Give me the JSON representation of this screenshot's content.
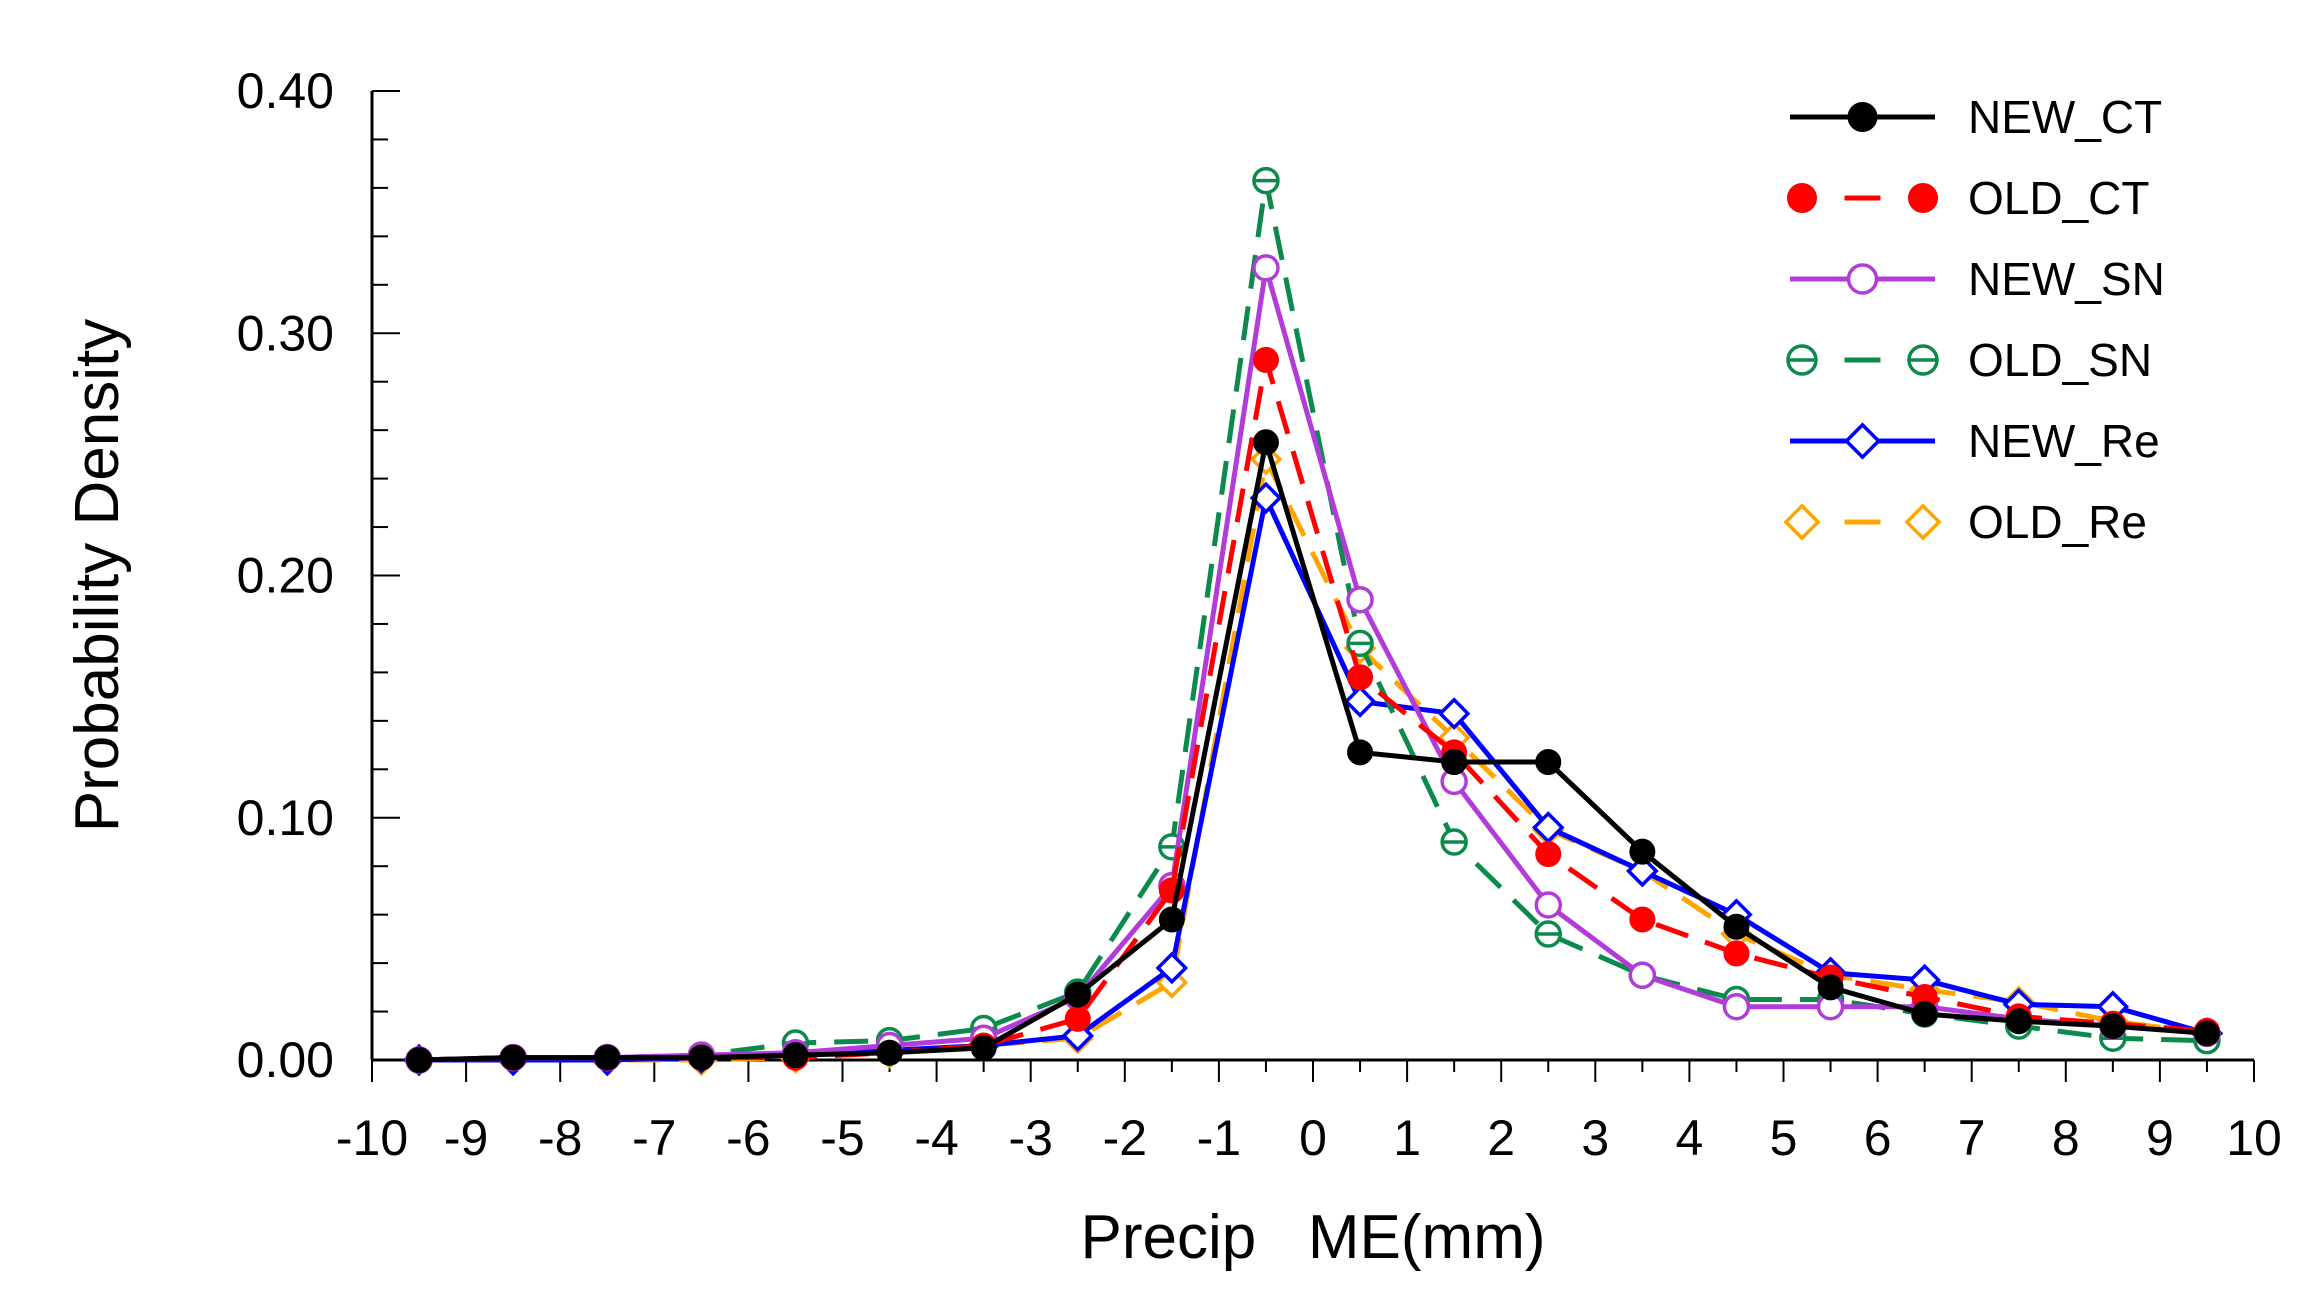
{
  "chart_data": {
    "type": "line",
    "title": "",
    "xlabel": "Precip   ME(mm)",
    "ylabel": "Probability Density",
    "xlim": [
      -10,
      10
    ],
    "ylim": [
      0,
      0.4
    ],
    "xticks": [
      -10,
      -9,
      -8,
      -7,
      -6,
      -5,
      -4,
      -3,
      -2,
      -1,
      0,
      1,
      2,
      3,
      4,
      5,
      6,
      7,
      8,
      9,
      10
    ],
    "xtick_labels": [
      "-10",
      "-9",
      "-8",
      "-7",
      "-6",
      "-5",
      "-4",
      "-3",
      "-2",
      "-1",
      "0",
      "1",
      "2",
      "3",
      "4",
      "5",
      "6",
      "7",
      "8",
      "9",
      "10"
    ],
    "yticks": [
      0,
      0.1,
      0.2,
      0.3,
      0.4
    ],
    "ytick_labels": [
      "0.00",
      "0.10",
      "0.20",
      "0.30",
      "0.40"
    ],
    "grid": false,
    "legend_position": "top-right",
    "x": [
      -9.5,
      -8.5,
      -7.5,
      -6.5,
      -5.5,
      -4.5,
      -3.5,
      -2.5,
      -1.5,
      -0.5,
      0.5,
      1.5,
      2.5,
      3.5,
      4.5,
      5.5,
      6.5,
      7.5,
      8.5,
      9.5
    ],
    "series": [
      {
        "name": "NEW_CT",
        "color": "#000000",
        "dash": "solid",
        "marker": "filled-circle",
        "values": [
          0.0,
          0.001,
          0.001,
          0.001,
          0.002,
          0.003,
          0.005,
          0.027,
          0.058,
          0.255,
          0.127,
          0.123,
          0.123,
          0.086,
          0.055,
          0.03,
          0.019,
          0.016,
          0.014,
          0.011
        ]
      },
      {
        "name": "OLD_CT",
        "color": "#ff0000",
        "dash": "dashed",
        "marker": "filled-circle",
        "values": [
          0.0,
          0.001,
          0.001,
          0.001,
          0.001,
          0.003,
          0.006,
          0.017,
          0.07,
          0.289,
          0.158,
          0.127,
          0.085,
          0.058,
          0.044,
          0.034,
          0.026,
          0.018,
          0.015,
          0.012
        ]
      },
      {
        "name": "NEW_SN",
        "color": "#b23cd9",
        "dash": "solid",
        "marker": "open-circle",
        "values": [
          0.0,
          0.001,
          0.001,
          0.002,
          0.003,
          0.006,
          0.009,
          0.026,
          0.072,
          0.327,
          0.19,
          0.115,
          0.064,
          0.035,
          0.022,
          0.022,
          0.022,
          0.017,
          0.014,
          0.011
        ]
      },
      {
        "name": "OLD_SN",
        "color": "#0b8a4c",
        "dash": "dashed",
        "marker": "circle-bar",
        "values": [
          0.0,
          0.001,
          0.001,
          0.002,
          0.007,
          0.008,
          0.013,
          0.028,
          0.088,
          0.363,
          0.172,
          0.09,
          0.052,
          0.035,
          0.025,
          0.025,
          0.019,
          0.014,
          0.009,
          0.008
        ]
      },
      {
        "name": "NEW_Re",
        "color": "#0000ff",
        "dash": "solid",
        "marker": "open-diamond",
        "values": [
          0.0,
          0.0,
          0.0,
          0.001,
          0.002,
          0.004,
          0.006,
          0.01,
          0.038,
          0.232,
          0.148,
          0.143,
          0.096,
          0.078,
          0.06,
          0.036,
          0.033,
          0.023,
          0.022,
          0.011
        ]
      },
      {
        "name": "OLD_Re",
        "color": "#ffa500",
        "dash": "dashed",
        "marker": "open-diamond",
        "values": [
          0.0,
          0.0,
          0.0,
          0.0,
          0.001,
          0.003,
          0.006,
          0.009,
          0.032,
          0.248,
          0.17,
          0.133,
          0.095,
          0.078,
          0.052,
          0.035,
          0.029,
          0.024,
          0.016,
          0.011
        ]
      }
    ]
  }
}
